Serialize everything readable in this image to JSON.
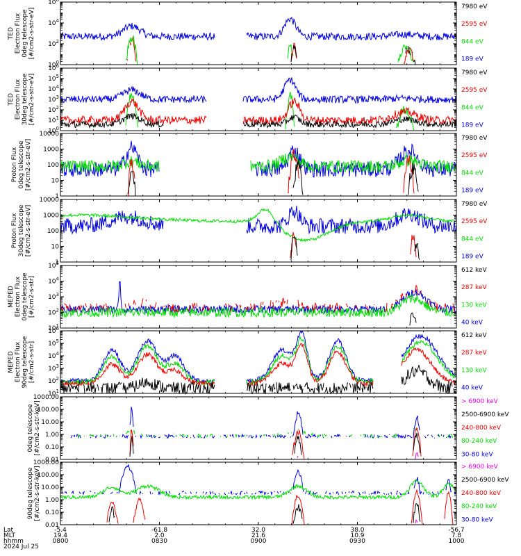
{
  "colors": {
    "blue": "#0000dd",
    "red": "#ee0000",
    "green": "#00dd00",
    "black": "#000000",
    "magenta": "#ee00ee"
  },
  "chart_data": {
    "type": "line",
    "x_axis": {
      "rows": [
        "Lat",
        "MLT",
        "hhmm"
      ],
      "tick_rows": [
        [
          "-5.4",
          "-61.8",
          "32.0",
          "38.0",
          "-56.7"
        ],
        [
          "19.4",
          "2.0",
          "21.6",
          "10.9",
          "7.8"
        ],
        [
          "0800",
          "0830",
          "0900",
          "0930",
          "1000"
        ]
      ],
      "date": "2024 Jul 25"
    },
    "panels": [
      {
        "name": "ted-electron-0deg",
        "ylabel": [
          "TED",
          "Electron Flux",
          "0deg telescope",
          "[#/cm2-s-str-eV]"
        ],
        "scale": "log",
        "ylim": [
          1,
          1000000
        ],
        "yticks": [
          "10^0",
          "10^2",
          "10^4",
          "10^6"
        ],
        "legend": [
          {
            "label": "7980 eV",
            "color": "black"
          },
          {
            "label": "2595 eV",
            "color": "red"
          },
          {
            "label": "844 eV",
            "color": "green"
          },
          {
            "label": "189 eV",
            "color": "blue"
          }
        ]
      },
      {
        "name": "ted-electron-30deg",
        "ylabel": [
          "TED",
          "Electron Flux",
          "30deg telescope",
          "[#/cm2-s-str-eV]"
        ],
        "scale": "log",
        "ylim": [
          1,
          1000000
        ],
        "yticks": [
          "10^0",
          "10^1",
          "10^2",
          "10^3",
          "10^4",
          "10^5",
          "10^6"
        ],
        "legend": [
          {
            "label": "7980 eV",
            "color": "black"
          },
          {
            "label": "2595 eV",
            "color": "red"
          },
          {
            "label": "844 eV",
            "color": "green"
          },
          {
            "label": "189 eV",
            "color": "blue"
          }
        ]
      },
      {
        "name": "ted-proton-0deg",
        "ylabel": [
          "Proton Flux",
          "0deg telescope",
          "[#/cm2-s-str-eV]"
        ],
        "scale": "log",
        "ylim": [
          1,
          10000
        ],
        "yticks": [
          "1",
          "10",
          "100",
          "1000",
          "10000"
        ],
        "legend": [
          {
            "label": "7980 eV",
            "color": "black"
          },
          {
            "label": "2595 eV",
            "color": "red"
          },
          {
            "label": "844 eV",
            "color": "green"
          },
          {
            "label": "189 eV",
            "color": "blue"
          }
        ]
      },
      {
        "name": "ted-proton-30deg",
        "ylabel": [
          "Proton Flux",
          "30deg telescope",
          "[#/cm2-s-str-eV]"
        ],
        "scale": "log",
        "ylim": [
          1,
          10000
        ],
        "yticks": [
          "1",
          "10",
          "100",
          "1000",
          "10000"
        ],
        "legend": [
          {
            "label": "7980 eV",
            "color": "black"
          },
          {
            "label": "2595 eV",
            "color": "red"
          },
          {
            "label": "844 eV",
            "color": "green"
          },
          {
            "label": "189 eV",
            "color": "blue"
          }
        ]
      },
      {
        "name": "meped-electron-0deg",
        "ylabel": [
          "MEPED",
          "Electron Flux",
          "0deg telescope",
          "[#/cm2-s-str]"
        ],
        "scale": "log",
        "ylim": [
          10,
          100000
        ],
        "yticks": [
          "10^1",
          "10^2",
          "10^3",
          "10^4",
          "10^5"
        ],
        "legend": [
          {
            "label": "612 keV",
            "color": "black"
          },
          {
            "label": "287 keV",
            "color": "red"
          },
          {
            "label": "130 keV",
            "color": "green"
          },
          {
            "label": "40 keV",
            "color": "blue"
          }
        ]
      },
      {
        "name": "meped-electron-90deg",
        "ylabel": [
          "MEPED",
          "Electron Flux",
          "90deg telescope",
          "[#/cm2-s-str]"
        ],
        "scale": "log",
        "ylim": [
          10,
          1000000
        ],
        "yticks": [
          "10^1",
          "10^2",
          "10^3",
          "10^4",
          "10^5",
          "10^6"
        ],
        "legend": [
          {
            "label": "612 keV",
            "color": "black"
          },
          {
            "label": "287 keV",
            "color": "red"
          },
          {
            "label": "130 keV",
            "color": "green"
          },
          {
            "label": "40 keV",
            "color": "blue"
          }
        ]
      },
      {
        "name": "meped-proton-0deg",
        "ylabel": [
          "0deg telescope",
          "[#/cm2-s-str-keV]"
        ],
        "scale": "log",
        "ylim": [
          0.01,
          1000
        ],
        "yticks": [
          "0.01",
          "0.10",
          "1.00",
          "10.00",
          "100.00",
          "1000.00"
        ],
        "legend": [
          {
            "label": "> 6900 keV",
            "color": "magenta"
          },
          {
            "label": "2500-6900 keV",
            "color": "black"
          },
          {
            "label": "240-800 keV",
            "color": "red"
          },
          {
            "label": "80-240 keV",
            "color": "green"
          },
          {
            "label": "30-80 keV",
            "color": "blue"
          }
        ]
      },
      {
        "name": "meped-proton-90deg",
        "ylabel": [
          "90deg telescope",
          "[#/cm2-s-str-keV]"
        ],
        "scale": "log",
        "ylim": [
          0.01,
          1000
        ],
        "yticks": [
          "0.01",
          "0.10",
          "1.00",
          "10.00",
          "100.00",
          "1000.00"
        ],
        "legend": [
          {
            "label": "> 6900 keV",
            "color": "magenta"
          },
          {
            "label": "2500-6900 keV",
            "color": "black"
          },
          {
            "label": "240-800 keV",
            "color": "red"
          },
          {
            "label": "80-240 keV",
            "color": "green"
          },
          {
            "label": "30-80 keV",
            "color": "blue"
          }
        ]
      }
    ]
  }
}
